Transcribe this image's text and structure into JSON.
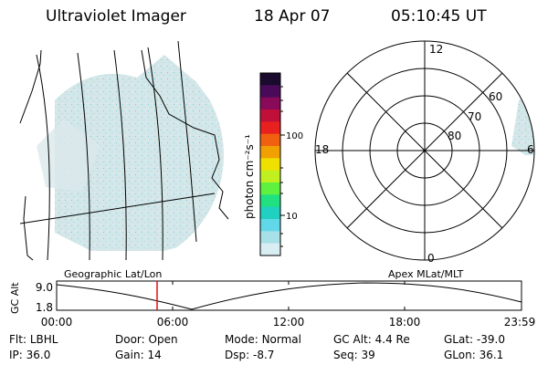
{
  "header": {
    "title": "Ultraviolet Imager",
    "date": "18 Apr 07",
    "time": "05:10:45 UT"
  },
  "colorbar": {
    "unit_label": "photon cm⁻²s⁻¹",
    "ticks": [
      "100",
      "10"
    ],
    "colors": [
      "#1a0a2e",
      "#4a0a5a",
      "#8a0a5a",
      "#c0103a",
      "#e82020",
      "#f06010",
      "#f0a000",
      "#f0e000",
      "#c0f020",
      "#60f040",
      "#20e080",
      "#20d0c0",
      "#60d8e8",
      "#a8e0e8",
      "#d8eef2"
    ]
  },
  "polar": {
    "mlt_labels": {
      "top": "12",
      "left": "18",
      "right": "6",
      "bottom": "0"
    },
    "lat_labels": [
      "60",
      "70",
      "80"
    ]
  },
  "timeline": {
    "left_label": "Geographic Lat/Lon",
    "right_label": "Apex MLat/MLT",
    "y_axis_title": "GC Alt",
    "y_ticks": [
      "9.0",
      "1.8"
    ],
    "x_ticks": [
      "00:00",
      "06:00",
      "12:00",
      "18:00",
      "23:59"
    ],
    "marker_time": "05:10:45"
  },
  "status": {
    "row1": [
      {
        "label": "Flt:",
        "value": "LBHL"
      },
      {
        "label": "Door:",
        "value": "Open"
      },
      {
        "label": "Mode:",
        "value": "Normal"
      },
      {
        "label": "GC Alt:",
        "value": "4.4 Re"
      },
      {
        "label": "GLat:",
        "value": "-39.0"
      }
    ],
    "row2": [
      {
        "label": "IP:",
        "value": "36.0"
      },
      {
        "label": "Gain:",
        "value": "14"
      },
      {
        "label": "Dsp:",
        "value": "-8.7"
      },
      {
        "label": "Seq:",
        "value": "39"
      },
      {
        "label": "GLon:",
        "value": "36.1"
      }
    ]
  },
  "accent_colors": {
    "glow": "#c8dfe2",
    "speckle": "#5ad0dc",
    "marker": "#e01010"
  }
}
